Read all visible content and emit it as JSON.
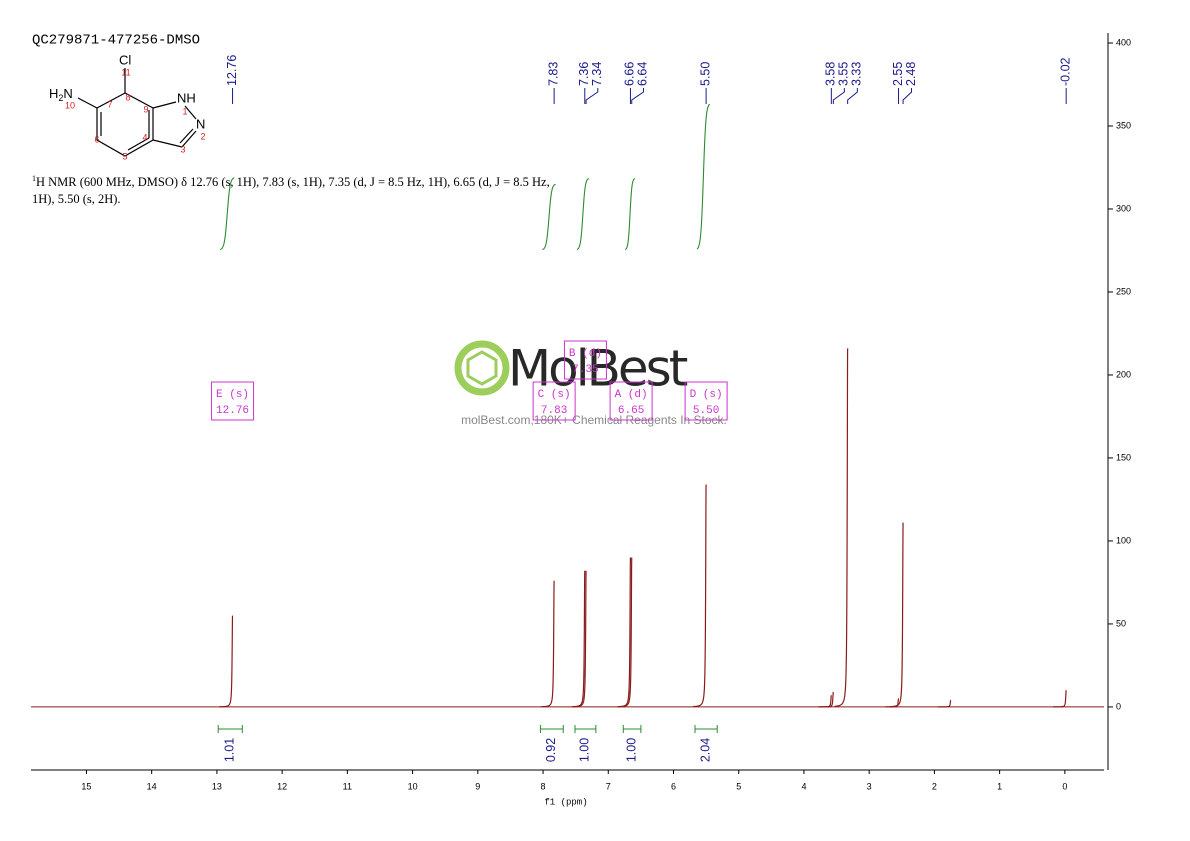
{
  "chart_data": {
    "type": "nmr",
    "title": "QC279871-477256-DMSO",
    "description": {
      "sup": "1",
      "lines": [
        "H NMR (600 MHz, DMSO) δ 12.76 (s, 1H), 7.83 (s, 1H), 7.35 (d, J = 8.5 Hz, 1H), 6.65 (d, J = 8.5 Hz,",
        "1H), 5.50 (s, 2H)."
      ]
    },
    "x_label": "f1 (ppm)",
    "xlim": [
      15.85,
      -0.6
    ],
    "xticks": [
      15,
      14,
      13,
      12,
      11,
      10,
      9,
      8,
      7,
      6,
      5,
      4,
      3,
      2,
      1,
      0
    ],
    "ylim": [
      -38,
      400
    ],
    "yticks": [
      0,
      50,
      100,
      150,
      200,
      250,
      300,
      350,
      400
    ],
    "color": "#8b1a1a",
    "x": [
      12.76,
      7.83,
      7.36,
      7.34,
      6.66,
      6.64,
      5.5,
      3.58,
      3.55,
      3.33,
      2.55,
      2.48,
      1.75,
      -0.02
    ],
    "values": [
      55,
      76,
      82,
      82,
      90,
      90,
      134,
      7,
      9,
      216,
      5,
      111,
      4,
      10
    ],
    "peak_label_color": "#1a1a8c",
    "peak_labels": [
      12.76,
      7.83,
      7.36,
      7.34,
      6.66,
      6.64,
      {
        "value": 5.5,
        "label": "5.50"
      },
      3.58,
      3.55,
      3.33,
      2.55,
      2.48,
      -0.02
    ],
    "integral_color": "#2e8b2e",
    "integrals": [
      {
        "from": 12.98,
        "to": 12.61,
        "value": 1.01,
        "label": "1.01"
      },
      {
        "from": 8.04,
        "to": 7.69,
        "value": 0.92,
        "label": "0.92"
      },
      {
        "from": 7.51,
        "to": 7.19,
        "value": 1.0,
        "label": "1.00"
      },
      {
        "from": 6.77,
        "to": 6.5,
        "value": 1.0,
        "label": "1.00"
      },
      {
        "from": 5.67,
        "to": 5.33,
        "value": 2.04,
        "label": "2.04"
      }
    ],
    "multiplet_color": "#cc33cc",
    "multiplets": [
      {
        "name": "E (s)",
        "shift": 12.76,
        "label": "12.76"
      },
      {
        "name": "C (s)",
        "shift": 7.83,
        "label": "7.83"
      },
      {
        "name": "B (d)",
        "shift": 7.35,
        "label": "7.35"
      },
      {
        "name": "A (d)",
        "shift": 6.65,
        "label": "6.65"
      },
      {
        "name": "D (s)",
        "shift": 5.5,
        "label": "5.50"
      }
    ],
    "molecule": {
      "chlorine": "Cl",
      "amine_h": "H",
      "amine_sub": "2",
      "amine_n": "N",
      "nh": "NH",
      "n": "N",
      "numbers": [
        "11",
        "10",
        "7",
        "8",
        "9",
        "1",
        "2",
        "6",
        "5",
        "4",
        "3"
      ]
    },
    "watermark": {
      "brand": "MolBest",
      "tagline": "molBest.com,180K+ Chemical Reagents In Stock."
    }
  }
}
